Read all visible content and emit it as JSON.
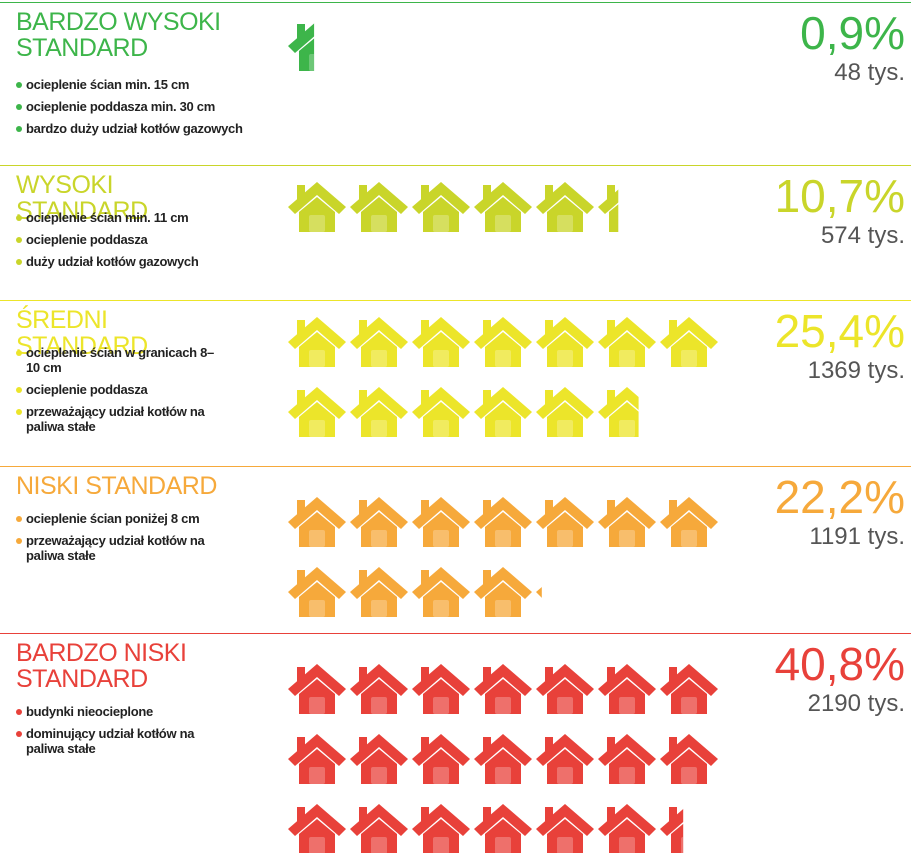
{
  "chart_data": {
    "type": "pictogram",
    "categories": [
      "BARDZO WYSOKI STANDARD",
      "WYSOKI STANDARD",
      "ŚREDNI STANDARD",
      "NISKI STANDARD",
      "BARDZO NISKI STANDARD"
    ],
    "values": [
      0.9,
      10.7,
      25.4,
      22.2,
      40.8
    ],
    "value_labels": [
      "0,9%",
      "10,7%",
      "25,4%",
      "22,2%",
      "40,8%"
    ],
    "counts": [
      48,
      574,
      1369,
      1191,
      2190
    ],
    "count_labels": [
      "48 tys.",
      "574 tys.",
      "1369 tys.",
      "1191 tys.",
      "2190 tys."
    ],
    "colors": [
      "#3db54a",
      "#c9d52a",
      "#ece52a",
      "#f6a93b",
      "#e8413a"
    ],
    "bullets": [
      [
        "ocieplenie ścian min. 15 cm",
        "ocieplenie poddasza min. 30 cm",
        "bardzo duży udział kotłów gazowych"
      ],
      [
        "ocieplenie ścian min. 11 cm",
        "ocieplenie poddasza",
        "duży udział kotłów gazowych"
      ],
      [
        "ocieplenie ścian w granicach 8–10 cm",
        "ocieplenie poddasza",
        "przeważający udział kotłów na paliwa stałe"
      ],
      [
        "ocieplenie ścian poniżej 8 cm",
        "przeważający udział kotłów na paliwa stałe"
      ],
      [
        "budynki nieocieplone",
        "dominujący udział kotłów na paliwa stałe"
      ]
    ]
  }
}
